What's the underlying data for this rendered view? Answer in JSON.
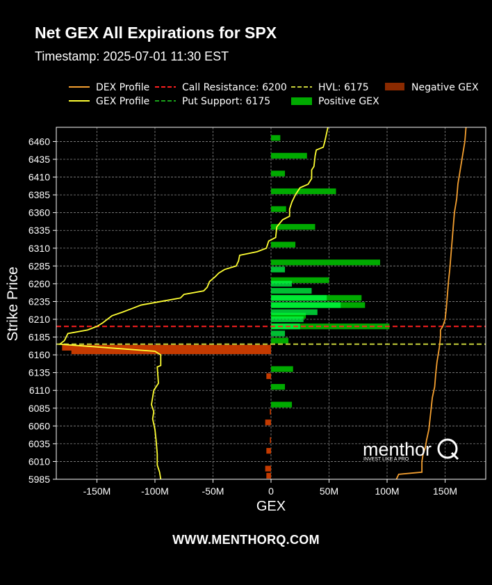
{
  "header": {
    "title": "Net GEX All Expirations for SPX",
    "timestamp": "Timestamp: 2025-07-01 11:30 EST"
  },
  "footer": {
    "url": "WWW.MENTHORQ.COM"
  },
  "watermark": {
    "brand": "menthor",
    "tagline": "INVEST LIKE A PRO"
  },
  "legend": {
    "dex": "DEX Profile",
    "gex": "GEX Profile",
    "call_resistance": "Call Resistance: 6200",
    "put_support": "Put Support: 6175",
    "hvl": "HVL: 6175",
    "positive": "Positive GEX",
    "negative": "Negative GEX"
  },
  "colors": {
    "dex": "#f5a030",
    "gex": "#ffff33",
    "call_resistance": "#ff2020",
    "put_support": "#1aa31a",
    "hvl": "#c8d23a",
    "positive": "#00aa00",
    "positive_bright": "#00ff44",
    "negative": "#c43a00",
    "negative_bright": "#ff4400"
  },
  "chart_data": {
    "type": "bar",
    "orientation": "horizontal",
    "xlabel": "GEX",
    "ylabel": "Strike Price",
    "xlim": [
      -185,
      185
    ],
    "ylim": [
      5985,
      6480
    ],
    "x_unit": "M",
    "x_ticks": [
      -150,
      -100,
      -50,
      0,
      50,
      100,
      150
    ],
    "x_tick_labels": [
      "-150M",
      "-100M",
      "-50M",
      "0",
      "50M",
      "100M",
      "150M"
    ],
    "y_ticks": [
      5985,
      6010,
      6035,
      6060,
      6085,
      6110,
      6135,
      6160,
      6185,
      6210,
      6235,
      6260,
      6285,
      6310,
      6335,
      6360,
      6385,
      6410,
      6435,
      6460
    ],
    "grid": true,
    "legend_position": "top",
    "levels": {
      "call_resistance": 6200,
      "put_support": 6175,
      "hvl": 6175
    },
    "gex_bars": [
      {
        "strike": 6465,
        "value": 8
      },
      {
        "strike": 6440,
        "value": 31
      },
      {
        "strike": 6415,
        "value": 12
      },
      {
        "strike": 6390,
        "value": 56
      },
      {
        "strike": 6365,
        "value": 13
      },
      {
        "strike": 6340,
        "value": 38
      },
      {
        "strike": 6315,
        "value": 21
      },
      {
        "strike": 6290,
        "value": 94
      },
      {
        "strike": 6265,
        "value": 50
      },
      {
        "strike": 6240,
        "value": 78
      },
      {
        "strike": 6230,
        "value": 81
      },
      {
        "strike": 6215,
        "value": 30
      },
      {
        "strike": 6200,
        "value": 102
      },
      {
        "strike": 6180,
        "value": 15
      },
      {
        "strike": 6170,
        "value": -180
      },
      {
        "strike": 6165,
        "value": -172
      },
      {
        "strike": 6140,
        "value": 19
      },
      {
        "strike": 6130,
        "value": -4
      },
      {
        "strike": 6115,
        "value": 12
      },
      {
        "strike": 6090,
        "value": 18
      },
      {
        "strike": 6080,
        "value": -1
      },
      {
        "strike": 6065,
        "value": -5
      },
      {
        "strike": 6040,
        "value": -1
      },
      {
        "strike": 6025,
        "value": -4
      },
      {
        "strike": 6000,
        "value": -5
      },
      {
        "strike": 5990,
        "value": -4
      }
    ],
    "gex_bright_bars": [
      {
        "strike": 6280,
        "value": 12
      },
      {
        "strike": 6260,
        "value": 18
      },
      {
        "strike": 6250,
        "value": 35
      },
      {
        "strike": 6240,
        "value": 48
      },
      {
        "strike": 6230,
        "value": 60
      },
      {
        "strike": 6220,
        "value": 40
      },
      {
        "strike": 6210,
        "value": 28
      },
      {
        "strike": 6200,
        "value": 25
      },
      {
        "strike": 6190,
        "value": 12
      }
    ],
    "series": [
      {
        "name": "GEX Profile",
        "points": [
          [
            49,
            6480
          ],
          [
            47,
            6465
          ],
          [
            46,
            6458
          ],
          [
            45,
            6452
          ],
          [
            39,
            6448
          ],
          [
            38,
            6440
          ],
          [
            37,
            6425
          ],
          [
            35,
            6420
          ],
          [
            35,
            6408
          ],
          [
            32,
            6400
          ],
          [
            25,
            6395
          ],
          [
            21,
            6385
          ],
          [
            18,
            6375
          ],
          [
            16,
            6365
          ],
          [
            16,
            6355
          ],
          [
            10,
            6350
          ],
          [
            5,
            6340
          ],
          [
            4,
            6325
          ],
          [
            -2,
            6320
          ],
          [
            -4,
            6310
          ],
          [
            -12,
            6305
          ],
          [
            -27,
            6300
          ],
          [
            -28,
            6292
          ],
          [
            -30,
            6285
          ],
          [
            -40,
            6280
          ],
          [
            -45,
            6275
          ],
          [
            -48,
            6270
          ],
          [
            -53,
            6263
          ],
          [
            -55,
            6255
          ],
          [
            -58,
            6250
          ],
          [
            -75,
            6245
          ],
          [
            -78,
            6240
          ],
          [
            -95,
            6235
          ],
          [
            -112,
            6230
          ],
          [
            -120,
            6225
          ],
          [
            -128,
            6220
          ],
          [
            -137,
            6215
          ],
          [
            -145,
            6205
          ],
          [
            -150,
            6200
          ],
          [
            -158,
            6195
          ],
          [
            -175,
            6190
          ],
          [
            -178,
            6180
          ],
          [
            -182,
            6175
          ],
          [
            -100,
            6165
          ],
          [
            -95,
            6160
          ],
          [
            -95,
            6145
          ],
          [
            -98,
            6143
          ],
          [
            -97,
            6120
          ],
          [
            -101,
            6110
          ],
          [
            -103,
            6090
          ],
          [
            -101,
            6080
          ],
          [
            -102,
            6070
          ],
          [
            -100,
            6055
          ],
          [
            -99,
            6040
          ],
          [
            -98,
            6020
          ],
          [
            -98,
            6005
          ],
          [
            -96,
            5995
          ],
          [
            -95,
            5985
          ]
        ]
      },
      {
        "name": "DEX Profile",
        "points": [
          [
            168,
            6480
          ],
          [
            167,
            6460
          ],
          [
            165,
            6440
          ],
          [
            163,
            6420
          ],
          [
            161,
            6400
          ],
          [
            160,
            6380
          ],
          [
            158,
            6360
          ],
          [
            157,
            6340
          ],
          [
            156,
            6320
          ],
          [
            155,
            6300
          ],
          [
            154,
            6280
          ],
          [
            153,
            6265
          ],
          [
            152,
            6245
          ],
          [
            151,
            6225
          ],
          [
            150,
            6210
          ],
          [
            148,
            6200
          ],
          [
            146,
            6195
          ],
          [
            146,
            6185
          ],
          [
            145,
            6170
          ],
          [
            144,
            6160
          ],
          [
            143,
            6150
          ],
          [
            142,
            6135
          ],
          [
            141,
            6115
          ],
          [
            139,
            6100
          ],
          [
            138,
            6085
          ],
          [
            137,
            6070
          ],
          [
            136,
            6055
          ],
          [
            134,
            6040
          ],
          [
            133,
            6030
          ],
          [
            131,
            6020
          ],
          [
            130,
            6010
          ],
          [
            130,
            5995
          ],
          [
            110,
            5992
          ],
          [
            108,
            5985
          ]
        ]
      }
    ]
  }
}
